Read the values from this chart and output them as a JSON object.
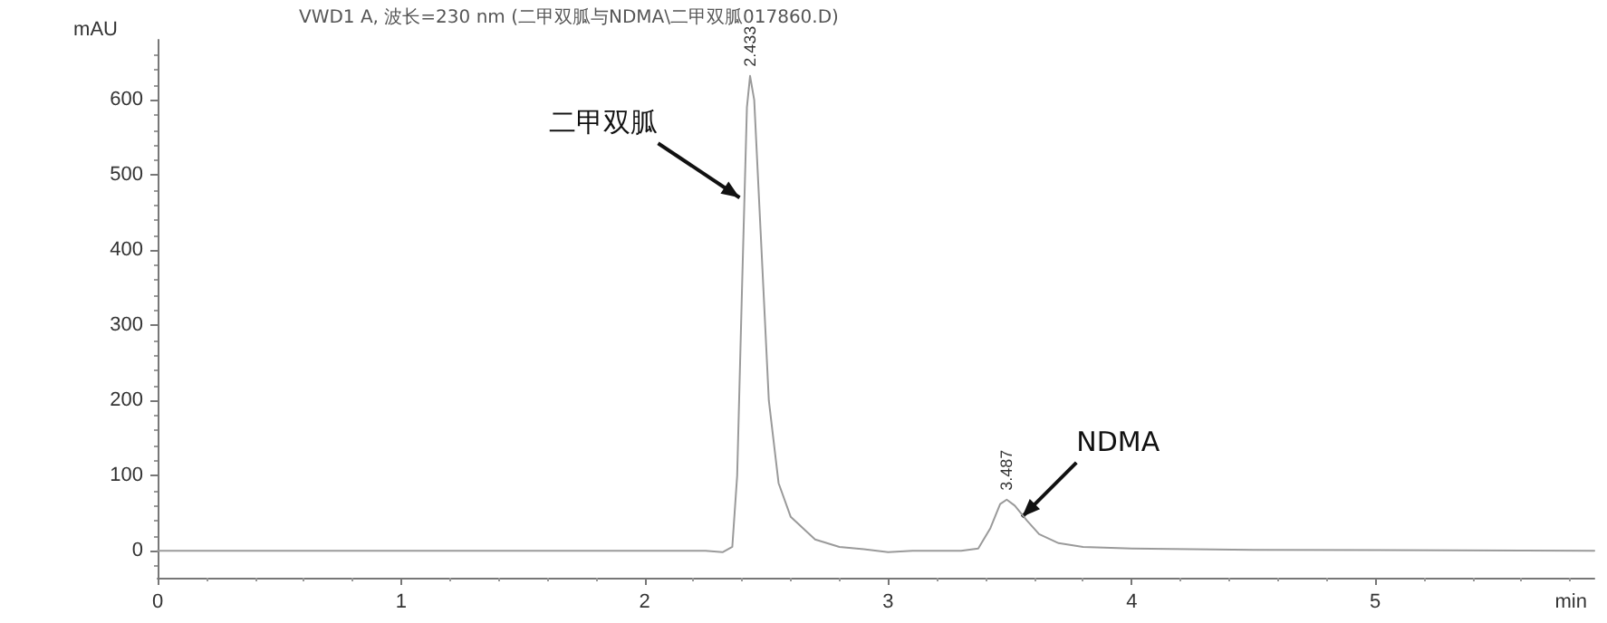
{
  "chart_data": {
    "type": "line",
    "title": "VWD1 A, 波长=230 nm (二甲双胍与NDMA\\二甲双胍017860.D)",
    "xlabel": "min",
    "ylabel": "mAU",
    "x": [
      0,
      2.25,
      2.32,
      2.36,
      2.38,
      2.4,
      2.42,
      2.433,
      2.45,
      2.48,
      2.51,
      2.55,
      2.6,
      2.7,
      2.8,
      2.9,
      3.0,
      3.1,
      3.3,
      3.37,
      3.42,
      3.46,
      3.487,
      3.52,
      3.57,
      3.62,
      3.7,
      3.8,
      4.0,
      4.5,
      5.9
    ],
    "series": [
      {
        "color": "#9a9a9a",
        "values": [
          0,
          0,
          -2,
          5,
          100,
          350,
          590,
          632,
          600,
          400,
          200,
          90,
          45,
          15,
          5,
          2,
          -2,
          0,
          0,
          3,
          30,
          62,
          68,
          60,
          40,
          22,
          10,
          5,
          3,
          1,
          0
        ]
      }
    ],
    "annotations": [
      {
        "text": "2.433",
        "x": 2.433,
        "y": 632
      },
      {
        "text": "3.487",
        "x": 3.487,
        "y": 68
      },
      {
        "text": "二甲双胍",
        "x": 2.39,
        "y": 470
      },
      {
        "text": "NDMA",
        "x": 3.55,
        "y": 45
      }
    ],
    "xlim": [
      0,
      5.9
    ],
    "xticks": [
      0,
      1,
      2,
      3,
      4,
      5
    ],
    "ylim": [
      -36,
      680
    ],
    "yticks": [
      0,
      100,
      200,
      300,
      400,
      500,
      600
    ],
    "grid": false,
    "marker": "none",
    "line_style": "solid"
  }
}
